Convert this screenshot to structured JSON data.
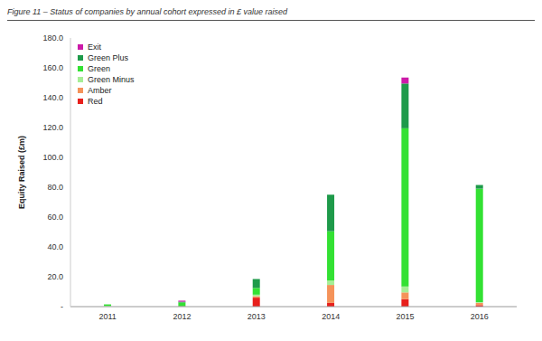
{
  "chart_data": {
    "type": "bar",
    "title": "Figure 11 – Status of companies by annual cohort expressed in £ value raised",
    "y_label": "Equity Raised (£m)",
    "categories": [
      "2011",
      "2012",
      "2013",
      "2014",
      "2015",
      "2016"
    ],
    "series": [
      {
        "name": "Red",
        "color": "#e8201c",
        "values": [
          0,
          0.2,
          6,
          2.5,
          5,
          1
        ]
      },
      {
        "name": "Amber",
        "color": "#f5935a",
        "values": [
          0,
          0,
          1,
          12,
          4.5,
          1.5
        ]
      },
      {
        "name": "Green Minus",
        "color": "#a6ee96",
        "values": [
          0.5,
          0,
          1,
          3,
          4,
          0.5
        ]
      },
      {
        "name": "Green",
        "color": "#33e133",
        "values": [
          1,
          2.6,
          4.5,
          33,
          106,
          76
        ]
      },
      {
        "name": "Green Plus",
        "color": "#1e9a4a",
        "values": [
          0,
          0.5,
          6,
          24.5,
          30,
          2.5
        ]
      },
      {
        "name": "Exit",
        "color": "#cc1aa8",
        "values": [
          0,
          0.7,
          0,
          0,
          4,
          0
        ]
      }
    ],
    "stacked": true,
    "legend": "top-left",
    "ylim": [
      0,
      180
    ],
    "yticks": [
      {
        "value": 0,
        "label": "-"
      },
      {
        "value": 20,
        "label": "20.0"
      },
      {
        "value": 40,
        "label": "40.0"
      },
      {
        "value": 60,
        "label": "60.0"
      },
      {
        "value": 80,
        "label": "80.0"
      },
      {
        "value": 100,
        "label": "100.0"
      },
      {
        "value": 120,
        "label": "120.0"
      },
      {
        "value": 140,
        "label": "140.0"
      },
      {
        "value": 160,
        "label": "160.0"
      },
      {
        "value": 180,
        "label": "180.0"
      }
    ]
  }
}
